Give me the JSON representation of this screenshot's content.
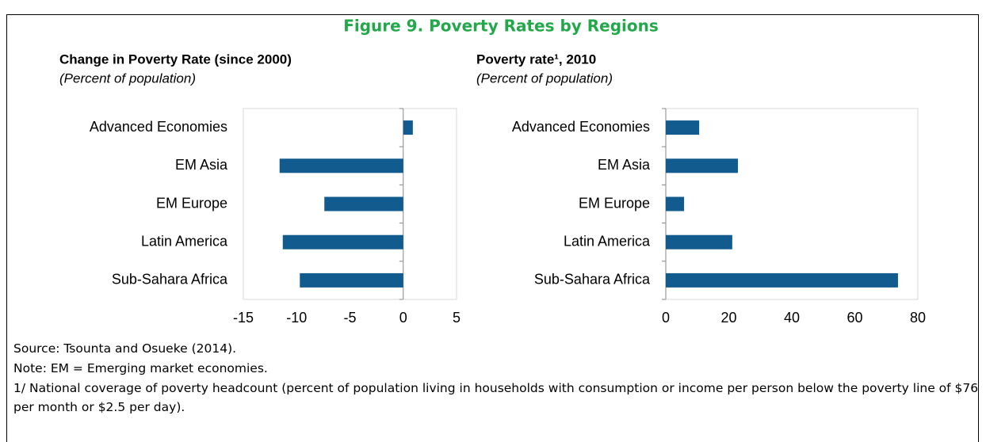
{
  "figure": {
    "title": "Figure 9. Poverty Rates by Regions",
    "notes": [
      "Source: Tsounta and Osueke (2014).",
      "Note: EM = Emerging market economies.",
      "1/ National coverage of poverty headcount (percent of population living in households with consumption or income per person below the poverty line of $76 per month or $2.5 per day)."
    ]
  },
  "chart_data": [
    {
      "type": "hbar",
      "title": "Change in Poverty Rate (since 2000)",
      "subtitle": "(Percent of population)",
      "categories": [
        "Advanced Economies",
        "EM Asia",
        "EM Europe",
        "Latin America",
        "Sub-Sahara Africa"
      ],
      "values": [
        0.9,
        -11.6,
        -7.4,
        -11.3,
        -9.7
      ],
      "color": "#125b8e",
      "xlim": [
        -15,
        5
      ],
      "xticks": [
        -15,
        -10,
        -5,
        0,
        5
      ],
      "grid": false
    },
    {
      "type": "hbar",
      "title": "Poverty rate¹, 2010",
      "subtitle": "(Percent of population)",
      "categories": [
        "Advanced Economies",
        "EM Asia",
        "EM Europe",
        "Latin America",
        "Sub-Sahara Africa"
      ],
      "values": [
        10.6,
        22.9,
        5.8,
        21.1,
        73.7
      ],
      "color": "#125b8e",
      "xlim": [
        0,
        80
      ],
      "xticks": [
        0,
        20,
        40,
        60,
        80
      ],
      "grid": false
    }
  ]
}
